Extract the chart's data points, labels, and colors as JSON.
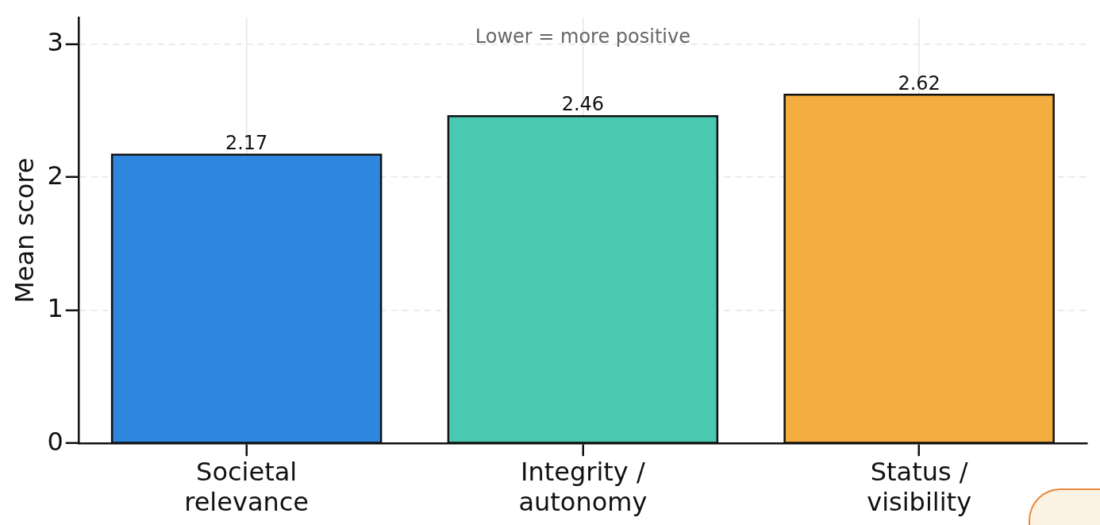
{
  "chart_data": {
    "type": "bar",
    "categories": [
      "Societal\nrelevance",
      "Integrity /\nautonomy",
      "Status /\nvisibility"
    ],
    "values": [
      2.17,
      2.46,
      2.62
    ],
    "colors": [
      "#2e86de",
      "#48c9b0",
      "#f4ae40"
    ],
    "ylabel": "Mean score",
    "ylim": [
      0,
      3.2
    ],
    "yticks": [
      0,
      1,
      2,
      3
    ],
    "annotations": [
      "Lower = more positive"
    ],
    "data_labels": true,
    "grid": true,
    "legend": false
  }
}
